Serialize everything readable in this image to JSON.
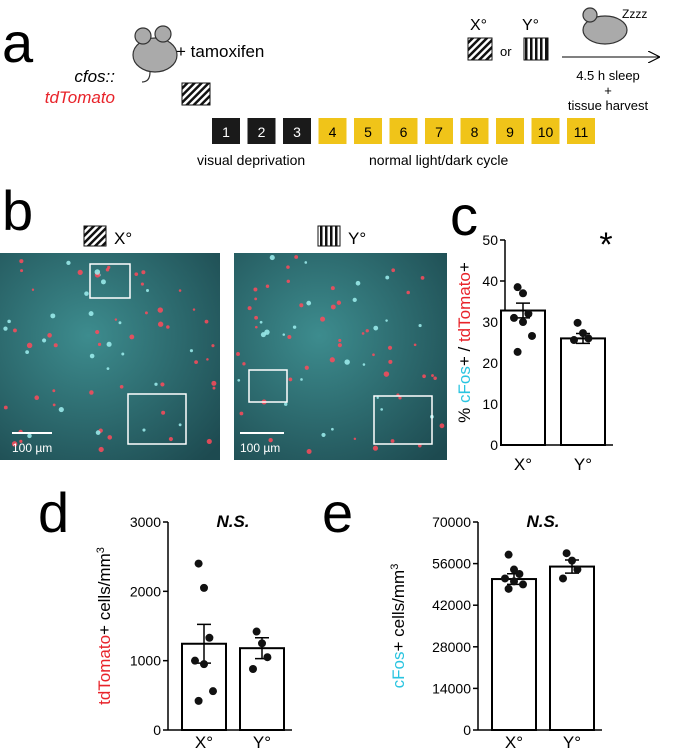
{
  "panel_letters": [
    "a",
    "b",
    "c",
    "d",
    "e"
  ],
  "timeline": {
    "genotype": [
      "cfos::",
      "tdTomato"
    ],
    "treatment": "+ tamoxifen",
    "days": [
      "1",
      "2",
      "3",
      "4",
      "5",
      "6",
      "7",
      "8",
      "9",
      "10",
      "11"
    ],
    "phases": [
      "visual deprivation",
      "normal light/dark cycle"
    ],
    "stimuli": [
      "X°",
      "Y°"
    ],
    "or": "or",
    "sleep_caption": [
      "4.5 h sleep",
      "+",
      "tissue harvest"
    ],
    "snore": "Zzzz"
  },
  "micrographs": {
    "labels": [
      "X°",
      "Y°"
    ],
    "scale_bars": [
      "100 µm",
      "100 µm"
    ]
  },
  "chart_data": [
    {
      "type": "bar",
      "ylabel": [
        "% ",
        "cFos",
        "+ / ",
        "tdTomato",
        "+"
      ],
      "ylabel_colors": [
        "#000",
        "#29c4e0",
        "#000",
        "#e8232a",
        "#000"
      ],
      "annotation": "*",
      "categories": [
        "X°",
        "Y°"
      ],
      "values": [
        32.8,
        26.0
      ],
      "errors": [
        1.8,
        1.2
      ],
      "points": [
        [
          38.5,
          37.0,
          32.0,
          31.0,
          30.0,
          26.6,
          22.7
        ],
        [
          29.8,
          27.3,
          26.0,
          25.6
        ]
      ],
      "ylim": [
        0,
        50
      ],
      "yticks": [
        0,
        10,
        20,
        30,
        40,
        50
      ]
    },
    {
      "type": "bar",
      "ylabel": [
        "tdTomato",
        "+ cells/mm"
      ],
      "ylabel_colors": [
        "#e8232a",
        "#000"
      ],
      "ylabel_sup": "3",
      "annotation": "N.S.",
      "categories": [
        "X°",
        "Y°"
      ],
      "values": [
        1244,
        1180
      ],
      "errors": [
        280,
        150
      ],
      "points": [
        [
          2400,
          2050,
          1330,
          1000,
          950,
          560,
          420
        ],
        [
          1420,
          1250,
          1050,
          880
        ]
      ],
      "ylim": [
        0,
        3000
      ],
      "yticks": [
        0,
        1000,
        2000,
        3000
      ]
    },
    {
      "type": "bar",
      "ylabel": [
        "cFos",
        "+ cells/mm"
      ],
      "ylabel_colors": [
        "#29c4e0",
        "#000"
      ],
      "ylabel_sup": "3",
      "annotation": "N.S.",
      "categories": [
        "X°",
        "Y°"
      ],
      "values": [
        50800,
        55000
      ],
      "errors": [
        1800,
        2200
      ],
      "points": [
        [
          59000,
          54000,
          52500,
          51000,
          50000,
          49000,
          47500
        ],
        [
          59500,
          57000,
          54000,
          51000
        ]
      ],
      "ylim": [
        0,
        70000
      ],
      "yticks": [
        0,
        14000,
        28000,
        42000,
        56000,
        70000
      ]
    }
  ]
}
